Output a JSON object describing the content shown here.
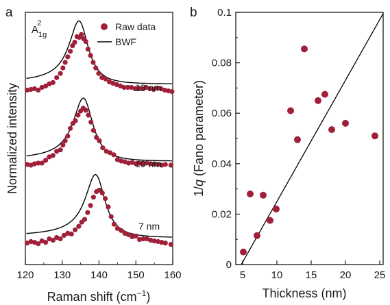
{
  "colors": {
    "marker": "#a0203a",
    "line": "#000000",
    "axis": "#1a1a1a"
  },
  "chart_data": [
    {
      "panel": "a",
      "type": "scatter",
      "xlabel_main": "Raman shift (cm",
      "xlabel_sup": "−1",
      "xlabel_close": ")",
      "ylabel": "Normalized intensity",
      "xlim": [
        120,
        160
      ],
      "xticks": [
        120,
        130,
        140,
        150,
        160
      ],
      "yticks_shown": false,
      "mode_label": {
        "base": "A",
        "sub": "1g",
        "sup": "2"
      },
      "legend": {
        "placement": "top-right",
        "markers_label": "Raw data",
        "line_label": "BWF"
      },
      "series": [
        {
          "name": "13 nm",
          "offset": 2.2,
          "center": 134.8,
          "gamma": 3.2,
          "amplitude": 0.9,
          "q": -12,
          "baseline": 0.06,
          "x": [
            120.5,
            121.5,
            122.5,
            123.5,
            124.5,
            125.5,
            126.5,
            127.5,
            128.5,
            129.5,
            130.2,
            130.8,
            131.5,
            132.2,
            132.8,
            133.4,
            134,
            134.6,
            135.2,
            135.8,
            136.4,
            137,
            137.7,
            138.4,
            139.1,
            139.9,
            140.8,
            141.8,
            142.8,
            143.8,
            144.8,
            145.8,
            146.8,
            147.8,
            148.8,
            149.8,
            150.8,
            151.8,
            152.8,
            153.8,
            154.8,
            155.8,
            156.8,
            157.8,
            158.8,
            159.8
          ],
          "y": [
            2.26,
            2.27,
            2.28,
            2.26,
            2.3,
            2.32,
            2.35,
            2.37,
            2.44,
            2.5,
            2.58,
            2.66,
            2.74,
            2.82,
            2.9,
            2.95,
            3.03,
            3.02,
            3.06,
            3.0,
            2.96,
            2.85,
            2.76,
            2.66,
            2.58,
            2.5,
            2.44,
            2.42,
            2.38,
            2.36,
            2.34,
            2.32,
            2.3,
            2.3,
            2.3,
            2.28,
            2.29,
            2.28,
            2.3,
            2.28,
            2.27,
            2.29,
            2.28,
            2.26,
            2.25,
            2.24
          ]
        },
        {
          "name": "10 nm",
          "offset": 1.1,
          "center": 136.0,
          "gamma": 3.3,
          "amplitude": 0.9,
          "q": -12,
          "baseline": 0.05,
          "x": [
            120.5,
            121.5,
            122.5,
            123.5,
            124.5,
            125.5,
            126.5,
            127.5,
            128.5,
            129.5,
            130.2,
            130.8,
            131.5,
            132.2,
            132.9,
            133.6,
            134.3,
            135,
            135.7,
            136.4,
            137.1,
            137.8,
            138.5,
            139.3,
            140.1,
            141,
            142,
            143,
            144,
            145,
            146,
            147,
            148,
            149,
            150,
            151,
            152,
            153,
            154,
            155,
            156,
            157,
            158,
            159.5
          ],
          "y": [
            1.19,
            1.18,
            1.2,
            1.21,
            1.21,
            1.25,
            1.3,
            1.32,
            1.38,
            1.4,
            1.47,
            1.53,
            1.6,
            1.71,
            1.78,
            1.82,
            1.9,
            1.96,
            2.0,
            1.97,
            1.9,
            1.8,
            1.68,
            1.58,
            1.53,
            1.43,
            1.38,
            1.36,
            1.33,
            1.26,
            1.24,
            1.23,
            1.21,
            1.22,
            1.2,
            1.21,
            1.2,
            1.21,
            1.2,
            1.2,
            1.19,
            1.18,
            1.19,
            1.18
          ]
        },
        {
          "name": "7 nm",
          "offset": 0.0,
          "center": 139.3,
          "gamma": 3.3,
          "amplitude": 0.9,
          "q": -12,
          "baseline": 0.05,
          "x": [
            120.5,
            121.5,
            122.5,
            123.5,
            124.5,
            125.5,
            126.5,
            127.5,
            128.5,
            129.5,
            130.5,
            131.5,
            132.5,
            133.5,
            134.5,
            135.3,
            136.1,
            136.9,
            137.7,
            138.5,
            139.3,
            140.1,
            140.9,
            141.7,
            142.5,
            143.3,
            144.1,
            145,
            146,
            147,
            148,
            149,
            150,
            151,
            152,
            153,
            154,
            155,
            156,
            157,
            158,
            159.5
          ],
          "y": [
            0.06,
            0.08,
            0.07,
            0.05,
            0.09,
            0.07,
            0.12,
            0.1,
            0.14,
            0.12,
            0.17,
            0.2,
            0.19,
            0.25,
            0.3,
            0.36,
            0.4,
            0.5,
            0.6,
            0.72,
            0.8,
            0.82,
            0.78,
            0.7,
            0.58,
            0.44,
            0.33,
            0.27,
            0.24,
            0.2,
            0.18,
            0.15,
            0.16,
            0.11,
            0.12,
            0.12,
            0.1,
            0.09,
            0.08,
            0.07,
            0.06,
            0.04
          ]
        }
      ],
      "annotations": [
        "13 nm",
        "10 nm",
        "7 nm"
      ]
    },
    {
      "panel": "b",
      "type": "scatter",
      "xlabel": "Thickness (nm)",
      "ylabel_parts": [
        "1/",
        "q",
        " (Fano parameter)"
      ],
      "xlim": [
        4,
        25.5
      ],
      "ylim": [
        0,
        0.1
      ],
      "xticks": [
        5,
        10,
        15,
        20,
        25
      ],
      "yticks": [
        0,
        0.02,
        0.04,
        0.06,
        0.08,
        0.1
      ],
      "ytick_labels": [
        "0",
        "0.02",
        "0.04",
        "0.06",
        "0.08",
        "0.1"
      ],
      "points": [
        {
          "x": 5.1,
          "y": 0.005
        },
        {
          "x": 6.1,
          "y": 0.028
        },
        {
          "x": 7.1,
          "y": 0.0115
        },
        {
          "x": 8.0,
          "y": 0.0275
        },
        {
          "x": 9.0,
          "y": 0.0175
        },
        {
          "x": 9.9,
          "y": 0.022
        },
        {
          "x": 12.0,
          "y": 0.061
        },
        {
          "x": 13.0,
          "y": 0.0495
        },
        {
          "x": 14.0,
          "y": 0.0855
        },
        {
          "x": 16.0,
          "y": 0.065
        },
        {
          "x": 17.0,
          "y": 0.0675
        },
        {
          "x": 18.0,
          "y": 0.0535
        },
        {
          "x": 20.0,
          "y": 0.056
        },
        {
          "x": 24.3,
          "y": 0.051
        }
      ],
      "fit_line": {
        "x": [
          4.8,
          25.5
        ],
        "y": [
          0.0,
          0.0995
        ]
      }
    }
  ]
}
